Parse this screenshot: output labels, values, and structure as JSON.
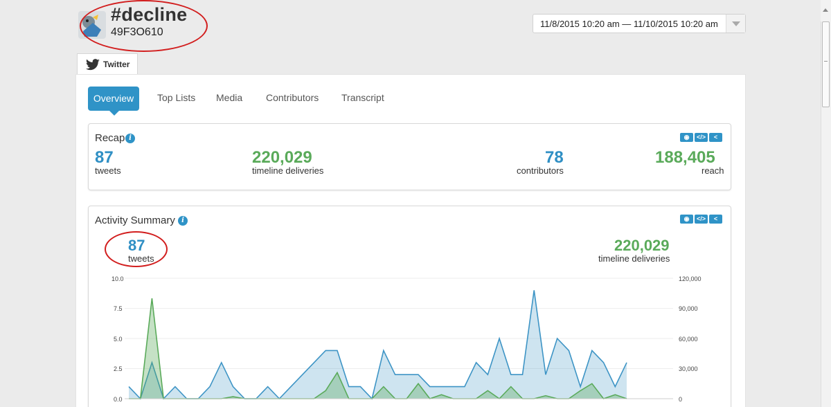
{
  "header": {
    "title": "#decline",
    "subtitle": "49F3O610",
    "date_range": "11/8/2015 10:20 am — 11/10/2015 10:20 am"
  },
  "tabs": [
    {
      "label": "Twitter",
      "icon": "twitter-bird-icon"
    }
  ],
  "nav": {
    "active": "Overview",
    "items": [
      "Top Lists",
      "Media",
      "Contributors",
      "Transcript"
    ]
  },
  "recap": {
    "title": "Recap",
    "stats": [
      {
        "value": "87",
        "label": "tweets"
      },
      {
        "value": "220,029",
        "label": "timeline deliveries"
      },
      {
        "value": "78",
        "label": "contributors"
      },
      {
        "value": "188,405",
        "label": "reach"
      }
    ]
  },
  "activity": {
    "title": "Activity Summary",
    "tweets_value": "87",
    "tweets_label": "tweets",
    "deliveries_value": "220,029",
    "deliveries_label": "timeline deliveries"
  },
  "tools": {
    "view": "◉",
    "embed": "</>",
    "share": "<"
  },
  "colors": {
    "accent": "#2f93c7",
    "green": "#5aaa5a",
    "annotation": "#d21e1e"
  },
  "chart_data": {
    "type": "area",
    "y_left_ticks": [
      "10.0",
      "7.5",
      "5.0",
      "2.5",
      "0.0"
    ],
    "y_right_ticks": [
      "120,000",
      "90,000",
      "60,000",
      "30,000",
      "0"
    ],
    "ylim_left": [
      0,
      10
    ],
    "ylim_right": [
      0,
      120000
    ],
    "x": [
      0,
      1,
      2,
      3,
      4,
      5,
      6,
      7,
      8,
      9,
      10,
      11,
      12,
      13,
      14,
      15,
      16,
      17,
      18,
      19,
      20,
      21,
      22,
      23,
      24,
      25,
      26,
      27,
      28,
      29,
      30,
      31,
      32,
      33,
      34,
      35,
      36,
      37,
      38,
      39,
      40,
      41,
      42,
      43
    ],
    "series": [
      {
        "values": [
          1,
          0,
          3,
          0,
          1,
          0,
          0,
          1,
          3,
          1,
          0,
          0,
          1,
          0,
          1,
          2,
          3,
          4,
          4,
          1,
          1,
          0,
          4,
          2,
          2,
          2,
          1,
          1,
          1,
          1,
          3,
          2,
          5,
          2,
          2,
          9,
          2,
          5,
          4,
          1,
          4,
          3,
          1,
          3
        ],
        "axis": "left",
        "color": "#3d94c5"
      },
      {
        "values": [
          0,
          0,
          100000,
          0,
          0,
          0,
          0,
          0,
          0,
          2000,
          0,
          0,
          0,
          0,
          0,
          0,
          0,
          8000,
          26000,
          0,
          0,
          0,
          12000,
          0,
          0,
          15000,
          0,
          4000,
          0,
          0,
          0,
          8000,
          0,
          12000,
          0,
          0,
          3000,
          0,
          0,
          8000,
          15000,
          0,
          4000,
          0
        ],
        "axis": "right",
        "color": "#5aaa5a"
      }
    ]
  }
}
